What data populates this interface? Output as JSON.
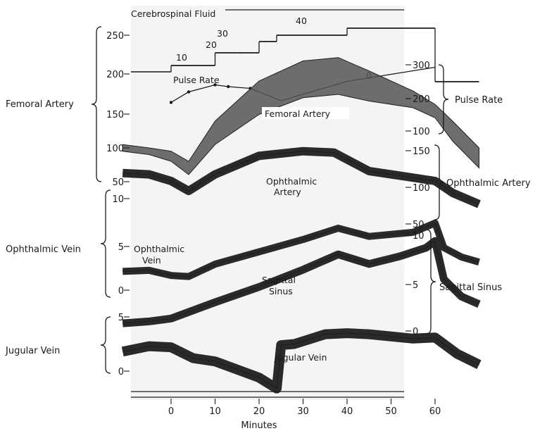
{
  "chart_data": {
    "type": "line",
    "title": "",
    "xlabel": "Minutes",
    "x_ticks": [
      "0",
      "10",
      "20",
      "30",
      "40",
      "50",
      "60"
    ],
    "xlim": [
      -11,
      70
    ],
    "left_axes": [
      {
        "label": "Femoral Artery",
        "ticks": [
          "250",
          "200",
          "150",
          "100",
          "50"
        ]
      },
      {
        "label": "Ophthalmic Vein",
        "ticks": [
          "10",
          "5",
          "0"
        ]
      },
      {
        "label": "Jugular Vein",
        "ticks": [
          "5",
          "0"
        ]
      }
    ],
    "right_axes": [
      {
        "label": "Pulse Rate",
        "ticks": [
          "300",
          "200",
          "100"
        ]
      },
      {
        "label": "Ophthalmic Artery",
        "ticks": [
          "150",
          "100",
          "50"
        ]
      },
      {
        "label": "Sagittal Sinus",
        "ticks": [
          "10",
          "5",
          "0"
        ]
      }
    ],
    "trace_labels": {
      "csf": "Cerebrospinal Fluid",
      "pulse": "Pulse Rate",
      "femoral": "Femoral Artery",
      "ophthalmic_artery_1": "Ophthalmic",
      "ophthalmic_artery_2": "Artery",
      "ophthalmic_vein_1": "Ophthalmic",
      "ophthalmic_vein_2": "Vein",
      "sagittal_1": "Sagittal",
      "sagittal_2": "Sinus",
      "jugular": "Jugular Vein"
    },
    "step_labels": [
      "10",
      "20",
      "30",
      "40",
      "0"
    ],
    "series": [
      {
        "name": "Cerebrospinal Fluid",
        "x": [
          -11,
          0,
          0,
          5,
          5,
          10,
          10,
          15,
          15,
          20,
          20,
          40,
          40,
          60,
          60,
          70
        ],
        "y": [
          0,
          0,
          10,
          10,
          10,
          10,
          20,
          20,
          20,
          20,
          30,
          30,
          40,
          40,
          0,
          0
        ]
      },
      {
        "name": "Pulse Rate",
        "x": [
          0,
          4,
          10,
          13,
          18,
          25,
          40,
          60
        ],
        "y": [
          185,
          215,
          235,
          230,
          225,
          190,
          245,
          285
        ]
      },
      {
        "name": "Femoral Artery",
        "x": [
          -11,
          -5,
          0,
          4,
          10,
          20,
          30,
          38,
          45,
          55,
          60,
          64,
          70
        ],
        "y_low": [
          95,
          90,
          80,
          60,
          105,
          150,
          175,
          180,
          170,
          160,
          145,
          110,
          70
        ],
        "y_high": [
          105,
          100,
          95,
          80,
          140,
          200,
          230,
          235,
          215,
          185,
          165,
          140,
          100
        ]
      },
      {
        "name": "Ophthalmic Artery",
        "x": [
          -11,
          -5,
          0,
          4,
          10,
          20,
          30,
          37,
          45,
          52,
          60,
          64,
          70
        ],
        "y": [
          112,
          110,
          100,
          85,
          110,
          138,
          145,
          143,
          115,
          108,
          100,
          82,
          65
        ]
      },
      {
        "name": "Ophthalmic Vein",
        "x": [
          -11,
          -5,
          0,
          4,
          10,
          20,
          30,
          38,
          45,
          55,
          60,
          62,
          66,
          70
        ],
        "y": [
          2.1,
          2.2,
          1.7,
          1.6,
          2.8,
          4.0,
          5.2,
          6.3,
          5.5,
          5.9,
          6.8,
          4.4,
          3.5,
          3.0
        ]
      },
      {
        "name": "Sagittal Sinus",
        "x": [
          -11,
          -5,
          0,
          10,
          20,
          30,
          38,
          45,
          52,
          58,
          60,
          62,
          66,
          70
        ],
        "y": [
          0.8,
          1.0,
          1.3,
          3.0,
          4.6,
          6.4,
          8.0,
          7.0,
          7.8,
          8.7,
          9.4,
          5.4,
          3.6,
          2.8
        ]
      },
      {
        "name": "Jugular Vein",
        "x": [
          -11,
          -5,
          0,
          5,
          10,
          20,
          24,
          25,
          28,
          35,
          40,
          45,
          55,
          60,
          65,
          70
        ],
        "y": [
          1.8,
          2.3,
          2.2,
          1.2,
          0.9,
          -0.6,
          -1.6,
          2.4,
          2.5,
          3.4,
          3.5,
          3.4,
          3.0,
          3.1,
          1.6,
          0.6
        ]
      }
    ],
    "grid": false,
    "colors": {
      "ink": "#1a1a1a",
      "shade": "#555555",
      "paper": "#ffffff"
    }
  }
}
